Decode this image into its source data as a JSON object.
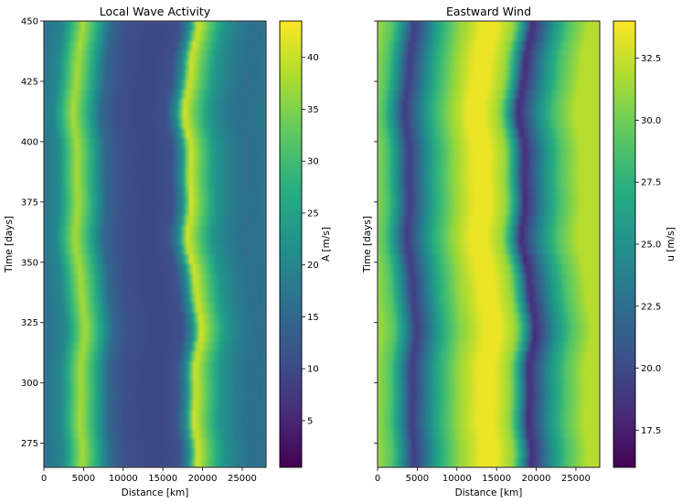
{
  "chart_data": [
    {
      "type": "heatmap",
      "title": "Local Wave Activity",
      "xlabel": "Distance [km]",
      "ylabel": "Time [days]",
      "xlim": [
        0,
        28000
      ],
      "ylim": [
        265,
        450
      ],
      "xticks": [
        "0",
        "5000",
        "10000",
        "15000",
        "20000",
        "25000"
      ],
      "yticks": [
        "275",
        "300",
        "325",
        "350",
        "375",
        "400",
        "425",
        "450"
      ],
      "colormap": "viridis",
      "colorbar": {
        "label": "A [m/s]",
        "range": [
          0.5,
          43.5
        ],
        "ticks": [
          "5",
          "10",
          "15",
          "20",
          "25",
          "30",
          "35",
          "40"
        ]
      },
      "field_profile": {
        "x_km": [
          0,
          2000,
          3500,
          4500,
          6000,
          8000,
          10000,
          12500,
          14500,
          16500,
          17800,
          18800,
          20000,
          22000,
          24000,
          26000,
          28000
        ],
        "value": [
          17,
          20,
          31,
          38,
          29,
          15,
          11,
          10,
          10,
          11,
          21,
          41,
          34,
          23,
          18,
          16,
          17
        ]
      }
    },
    {
      "type": "heatmap",
      "title": "Eastward Wind",
      "xlabel": "Distance [km]",
      "ylabel": "Time [days]",
      "xlim": [
        0,
        28000
      ],
      "ylim": [
        265,
        450
      ],
      "xticks": [
        "0",
        "5000",
        "10000",
        "15000",
        "20000",
        "25000"
      ],
      "yticks": [
        "275",
        "300",
        "325",
        "350",
        "375",
        "400",
        "425",
        "450"
      ],
      "colormap": "viridis",
      "colorbar": {
        "label": "u [m/s]",
        "range": [
          16,
          34
        ],
        "ticks": [
          "17.5",
          "20.0",
          "22.5",
          "25.0",
          "27.5",
          "30.0",
          "32.5"
        ]
      },
      "field_profile": {
        "x_km": [
          0,
          1500,
          3000,
          4200,
          5500,
          7500,
          10000,
          12500,
          14500,
          16500,
          17800,
          18800,
          20000,
          21500,
          23500,
          26000,
          28000
        ],
        "value": [
          31,
          29,
          24,
          19,
          22,
          27,
          31,
          33.5,
          33.5,
          31,
          25,
          18,
          21,
          25,
          29,
          32,
          32
        ]
      }
    }
  ]
}
